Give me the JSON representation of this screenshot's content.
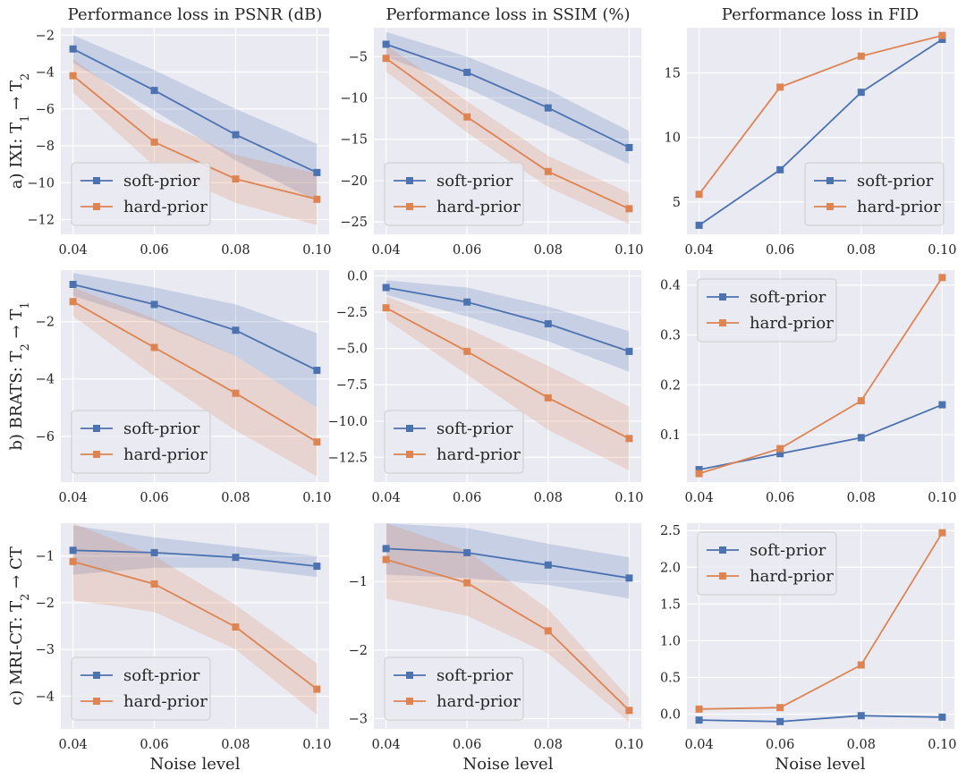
{
  "figure": {
    "col_titles": [
      "Performance loss in PSNR (dB)",
      "Performance loss in SSIM (%)",
      "Performance loss in FID"
    ],
    "row_labels": [
      {
        "base": "a) IXI: T",
        "s1": "1",
        "arrow": " → T",
        "s2": "2",
        "tail": ""
      },
      {
        "base": "b) BRATS: T",
        "s1": "2",
        "arrow": " → T",
        "s2": "1",
        "tail": ""
      },
      {
        "base": "c) MRI-CT: T",
        "s1": "2",
        "arrow": " → CT",
        "s2": "",
        "tail": ""
      }
    ],
    "xlabel": "Noise level",
    "colors": {
      "soft": "#4c72b0",
      "hard": "#dd8452",
      "panel_bg": "#eaeaf2",
      "grid": "#ffffff"
    }
  },
  "chart_data": [
    {
      "type": "line",
      "panel": "IXI PSNR",
      "x": [
        0.04,
        0.06,
        0.08,
        0.1
      ],
      "xticks": [
        "0.04",
        "0.06",
        "0.08",
        "0.10"
      ],
      "ylim": [
        -12.8,
        -1.6
      ],
      "yticks": [
        -12,
        -10,
        -8,
        -6,
        -4,
        -2
      ],
      "ytick_labels": [
        "−12",
        "−10",
        "−8",
        "−6",
        "−4",
        "−2"
      ],
      "legend": "bottom-left",
      "series": [
        {
          "name": "soft-prior",
          "values": [
            -2.75,
            -5.0,
            -7.4,
            -9.45
          ],
          "band_low": [
            -3.5,
            -6.1,
            -8.8,
            -11.0
          ],
          "band_high": [
            -2.0,
            -3.9,
            -6.0,
            -7.9
          ]
        },
        {
          "name": "hard-prior",
          "values": [
            -4.2,
            -7.8,
            -9.8,
            -10.9
          ],
          "band_low": [
            -5.1,
            -9.1,
            -11.1,
            -12.3
          ],
          "band_high": [
            -3.3,
            -6.5,
            -8.5,
            -9.5
          ]
        }
      ]
    },
    {
      "type": "line",
      "panel": "IXI SSIM",
      "x": [
        0.04,
        0.06,
        0.08,
        0.1
      ],
      "xticks": [
        "0.04",
        "0.06",
        "0.08",
        "0.10"
      ],
      "ylim": [
        -26.5,
        -1.5
      ],
      "yticks": [
        -25,
        -20,
        -15,
        -10,
        -5
      ],
      "ytick_labels": [
        "−25",
        "−20",
        "−15",
        "−10",
        "−5"
      ],
      "legend": "bottom-left",
      "series": [
        {
          "name": "soft-prior",
          "values": [
            -3.5,
            -6.9,
            -11.2,
            -16.0
          ],
          "band_low": [
            -5.0,
            -8.8,
            -13.4,
            -18.0
          ],
          "band_high": [
            -2.0,
            -5.0,
            -9.0,
            -14.0
          ]
        },
        {
          "name": "hard-prior",
          "values": [
            -5.2,
            -12.3,
            -18.9,
            -23.4
          ],
          "band_low": [
            -6.8,
            -14.2,
            -20.8,
            -25.3
          ],
          "band_high": [
            -3.6,
            -10.4,
            -17.0,
            -21.5
          ]
        }
      ]
    },
    {
      "type": "line",
      "panel": "IXI FID",
      "x": [
        0.04,
        0.06,
        0.08,
        0.1
      ],
      "xticks": [
        "0.04",
        "0.06",
        "0.08",
        "0.10"
      ],
      "ylim": [
        2.5,
        18.5
      ],
      "yticks": [
        5,
        10,
        15
      ],
      "ytick_labels": [
        "5",
        "10",
        "15"
      ],
      "legend": "bottom-right",
      "series": [
        {
          "name": "soft-prior",
          "values": [
            3.2,
            7.5,
            13.5,
            17.6
          ]
        },
        {
          "name": "hard-prior",
          "values": [
            5.6,
            13.9,
            16.3,
            17.9
          ]
        }
      ]
    },
    {
      "type": "line",
      "panel": "BRATS PSNR",
      "x": [
        0.04,
        0.06,
        0.08,
        0.1
      ],
      "xticks": [
        "0.04",
        "0.06",
        "0.08",
        "0.10"
      ],
      "ylim": [
        -7.6,
        -0.2
      ],
      "yticks": [
        -6,
        -4,
        -2
      ],
      "ytick_labels": [
        "−6",
        "−4",
        "−2"
      ],
      "legend": "bottom-left",
      "series": [
        {
          "name": "soft-prior",
          "values": [
            -0.7,
            -1.4,
            -2.3,
            -3.7
          ],
          "band_low": [
            -1.1,
            -2.0,
            -3.2,
            -5.0
          ],
          "band_high": [
            -0.3,
            -0.8,
            -1.4,
            -2.4
          ]
        },
        {
          "name": "hard-prior",
          "values": [
            -1.3,
            -2.9,
            -4.5,
            -6.2
          ],
          "band_low": [
            -1.8,
            -3.9,
            -5.8,
            -7.4
          ],
          "band_high": [
            -0.8,
            -1.9,
            -3.2,
            -5.0
          ]
        }
      ]
    },
    {
      "type": "line",
      "panel": "BRATS SSIM",
      "x": [
        0.04,
        0.06,
        0.08,
        0.1
      ],
      "xticks": [
        "0.04",
        "0.06",
        "0.08",
        "0.10"
      ],
      "ylim": [
        -14.2,
        0.4
      ],
      "yticks": [
        -12.5,
        -10,
        -7.5,
        -5,
        -2.5,
        0
      ],
      "ytick_labels": [
        "−12.5",
        "−10.0",
        "−7.5",
        "−5.0",
        "−2.5",
        "0.0"
      ],
      "legend": "bottom-left",
      "series": [
        {
          "name": "soft-prior",
          "values": [
            -0.8,
            -1.8,
            -3.3,
            -5.2
          ],
          "band_low": [
            -1.3,
            -2.8,
            -4.5,
            -6.6
          ],
          "band_high": [
            -0.3,
            -0.8,
            -2.1,
            -3.8
          ]
        },
        {
          "name": "hard-prior",
          "values": [
            -2.2,
            -5.2,
            -8.4,
            -11.2
          ],
          "band_low": [
            -3.0,
            -6.8,
            -10.6,
            -13.4
          ],
          "band_high": [
            -1.4,
            -3.6,
            -6.2,
            -9.0
          ]
        }
      ]
    },
    {
      "type": "line",
      "panel": "BRATS FID",
      "x": [
        0.04,
        0.06,
        0.08,
        0.1
      ],
      "xticks": [
        "0.04",
        "0.06",
        "0.08",
        "0.10"
      ],
      "ylim": [
        0.005,
        0.43
      ],
      "yticks": [
        0.1,
        0.2,
        0.3,
        0.4
      ],
      "ytick_labels": [
        "0.1",
        "0.2",
        "0.3",
        "0.4"
      ],
      "legend": "top-left",
      "series": [
        {
          "name": "soft-prior",
          "values": [
            0.03,
            0.062,
            0.094,
            0.16
          ]
        },
        {
          "name": "hard-prior",
          "values": [
            0.022,
            0.072,
            0.168,
            0.415
          ]
        }
      ]
    },
    {
      "type": "line",
      "panel": "MRI-CT PSNR",
      "x": [
        0.04,
        0.06,
        0.08,
        0.1
      ],
      "xticks": [
        "0.04",
        "0.06",
        "0.08",
        "0.10"
      ],
      "ylim": [
        -4.7,
        -0.3
      ],
      "yticks": [
        -4,
        -3,
        -2,
        -1
      ],
      "ytick_labels": [
        "−4",
        "−3",
        "−2",
        "−1"
      ],
      "legend": "bottom-left",
      "series": [
        {
          "name": "soft-prior",
          "values": [
            -0.88,
            -0.93,
            -1.03,
            -1.22
          ],
          "band_low": [
            -1.4,
            -1.25,
            -1.25,
            -1.45
          ],
          "band_high": [
            -0.35,
            -0.6,
            -0.8,
            -1.0
          ]
        },
        {
          "name": "hard-prior",
          "values": [
            -1.12,
            -1.6,
            -2.52,
            -3.85
          ],
          "band_low": [
            -1.95,
            -2.2,
            -3.0,
            -4.4
          ],
          "band_high": [
            -0.3,
            -1.0,
            -2.05,
            -3.3
          ]
        }
      ]
    },
    {
      "type": "line",
      "panel": "MRI-CT SSIM",
      "x": [
        0.04,
        0.06,
        0.08,
        0.1
      ],
      "xticks": [
        "0.04",
        "0.06",
        "0.08",
        "0.10"
      ],
      "ylim": [
        -3.15,
        -0.15
      ],
      "yticks": [
        -3,
        -2,
        -1
      ],
      "ytick_labels": [
        "−3",
        "−2",
        "−1"
      ],
      "legend": "bottom-left",
      "series": [
        {
          "name": "soft-prior",
          "values": [
            -0.52,
            -0.58,
            -0.76,
            -0.95
          ],
          "band_low": [
            -0.9,
            -0.95,
            -1.05,
            -1.25
          ],
          "band_high": [
            -0.15,
            -0.22,
            -0.45,
            -0.65
          ]
        },
        {
          "name": "hard-prior",
          "values": [
            -0.68,
            -1.02,
            -1.72,
            -2.88
          ],
          "band_low": [
            -1.25,
            -1.5,
            -2.05,
            -3.05
          ],
          "band_high": [
            -0.15,
            -0.55,
            -1.4,
            -2.7
          ]
        }
      ]
    },
    {
      "type": "line",
      "panel": "MRI-CT FID",
      "x": [
        0.04,
        0.06,
        0.08,
        0.1
      ],
      "xticks": [
        "0.04",
        "0.06",
        "0.08",
        "0.10"
      ],
      "ylim": [
        -0.2,
        2.6
      ],
      "yticks": [
        0,
        0.5,
        1,
        1.5,
        2,
        2.5
      ],
      "ytick_labels": [
        "0.0",
        "0.5",
        "1.0",
        "1.5",
        "2.0",
        "2.5"
      ],
      "legend": "top-left",
      "series": [
        {
          "name": "soft-prior",
          "values": [
            -0.08,
            -0.1,
            -0.02,
            -0.04
          ]
        },
        {
          "name": "hard-prior",
          "values": [
            0.07,
            0.09,
            0.67,
            2.47
          ]
        }
      ]
    }
  ]
}
